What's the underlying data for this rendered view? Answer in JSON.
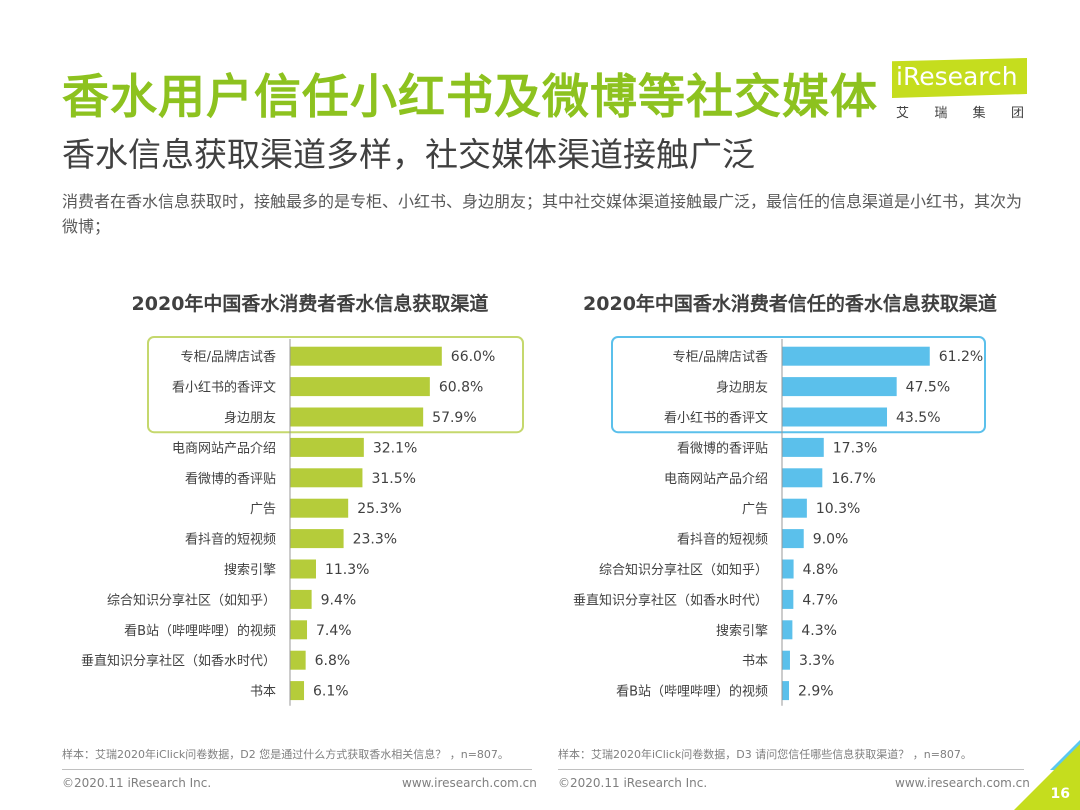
{
  "header": {
    "title": "香水用户信任小红书及微博等社交媒体",
    "subtitle": "香水信息获取渠道多样，社交媒体渠道接触广泛",
    "intro": "消费者在香水信息获取时，接触最多的是专柜、小红书、身边朋友；其中社交媒体渠道接触最广泛，最信任的信息渠道是小红书，其次为微博；"
  },
  "logo": {
    "brand": "iResearch",
    "cn": [
      "艾",
      "瑞",
      "集",
      "团"
    ]
  },
  "colors": {
    "brand_green": "#8dc21f",
    "bar_green": "#b5cc3a",
    "bar_blue": "#5bc0eb",
    "highlight_green": "#c5d86d",
    "highlight_blue": "#5bc0eb"
  },
  "chart_data": [
    {
      "type": "bar",
      "orientation": "horizontal",
      "title": "2020年中国香水消费者香水信息获取渠道",
      "categories": [
        "专柜/品牌店试香",
        "看小红书的香评文",
        "身边朋友",
        "电商网站产品介绍",
        "看微博的香评贴",
        "广告",
        "看抖音的短视频",
        "搜索引擎",
        "综合知识分享社区（如知乎）",
        "看B站（哔哩哔哩）的视频",
        "垂直知识分享社区（如香水时代）",
        "书本"
      ],
      "values": [
        66.0,
        60.8,
        57.9,
        32.1,
        31.5,
        25.3,
        23.3,
        11.3,
        9.4,
        7.4,
        6.8,
        6.1
      ],
      "labels": [
        "66.0%",
        "60.8%",
        "57.9%",
        "32.1%",
        "31.5%",
        "25.3%",
        "23.3%",
        "11.3%",
        "9.4%",
        "7.4%",
        "6.8%",
        "6.1%"
      ],
      "unit": "%",
      "highlight_top": 3,
      "xlim": [
        0,
        70
      ],
      "note": "样本：艾瑞2020年iClick问卷数据，D2 您是通过什么方式获取香水相关信息？ ，n=807。"
    },
    {
      "type": "bar",
      "orientation": "horizontal",
      "title": "2020年中国香水消费者信任的香水信息获取渠道",
      "categories": [
        "专柜/品牌店试香",
        "身边朋友",
        "看小红书的香评文",
        "看微博的香评贴",
        "电商网站产品介绍",
        "广告",
        "看抖音的短视频",
        "综合知识分享社区（如知乎）",
        "垂直知识分享社区（如香水时代）",
        "搜索引擎",
        "书本",
        "看B站（哔哩哔哩）的视频"
      ],
      "values": [
        61.2,
        47.5,
        43.5,
        17.3,
        16.7,
        10.3,
        9.0,
        4.8,
        4.7,
        4.3,
        3.3,
        2.9
      ],
      "labels": [
        "61.2%",
        "47.5%",
        "43.5%",
        "17.3%",
        "16.7%",
        "10.3%",
        "9.0%",
        "4.8%",
        "4.7%",
        "4.3%",
        "3.3%",
        "2.9%"
      ],
      "unit": "%",
      "highlight_top": 3,
      "xlim": [
        0,
        70
      ],
      "note": "样本：艾瑞2020年iClick问卷数据，D3 请问您信任哪些信息获取渠道？ ，n=807。"
    }
  ],
  "footer": {
    "copyright_left": "©2020.11 iResearch Inc.",
    "url_left": "www.iresearch.com.cn",
    "copyright_right": "©2020.11 iResearch Inc.",
    "url_right": "www.iresearch.com.cn",
    "page_number": "16"
  }
}
